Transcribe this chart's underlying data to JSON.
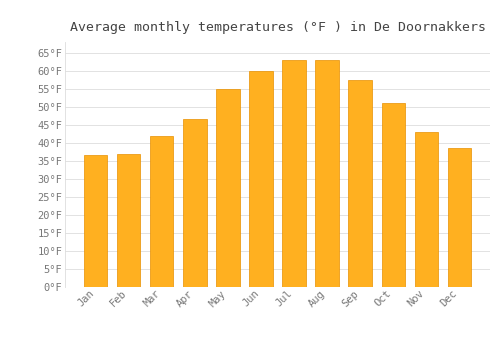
{
  "title": "Average monthly temperatures (°F ) in De Doornakkers",
  "months": [
    "Jan",
    "Feb",
    "Mar",
    "Apr",
    "May",
    "Jun",
    "Jul",
    "Aug",
    "Sep",
    "Oct",
    "Nov",
    "Dec"
  ],
  "values": [
    36.5,
    37.0,
    42.0,
    46.5,
    55.0,
    60.0,
    63.0,
    63.0,
    57.5,
    51.0,
    43.0,
    38.5
  ],
  "bar_color": "#FFB020",
  "bar_edge_color": "#E89000",
  "bar_edge_color2": "#AAAAAA",
  "background_color": "#FFFFFF",
  "plot_bg_color": "#FFFFFF",
  "grid_color": "#DDDDDD",
  "text_color": "#777777",
  "title_color": "#444444",
  "ylim": [
    0,
    68
  ],
  "yticks": [
    0,
    5,
    10,
    15,
    20,
    25,
    30,
    35,
    40,
    45,
    50,
    55,
    60,
    65
  ],
  "title_fontsize": 9.5,
  "tick_fontsize": 7.5,
  "bar_width": 0.7
}
